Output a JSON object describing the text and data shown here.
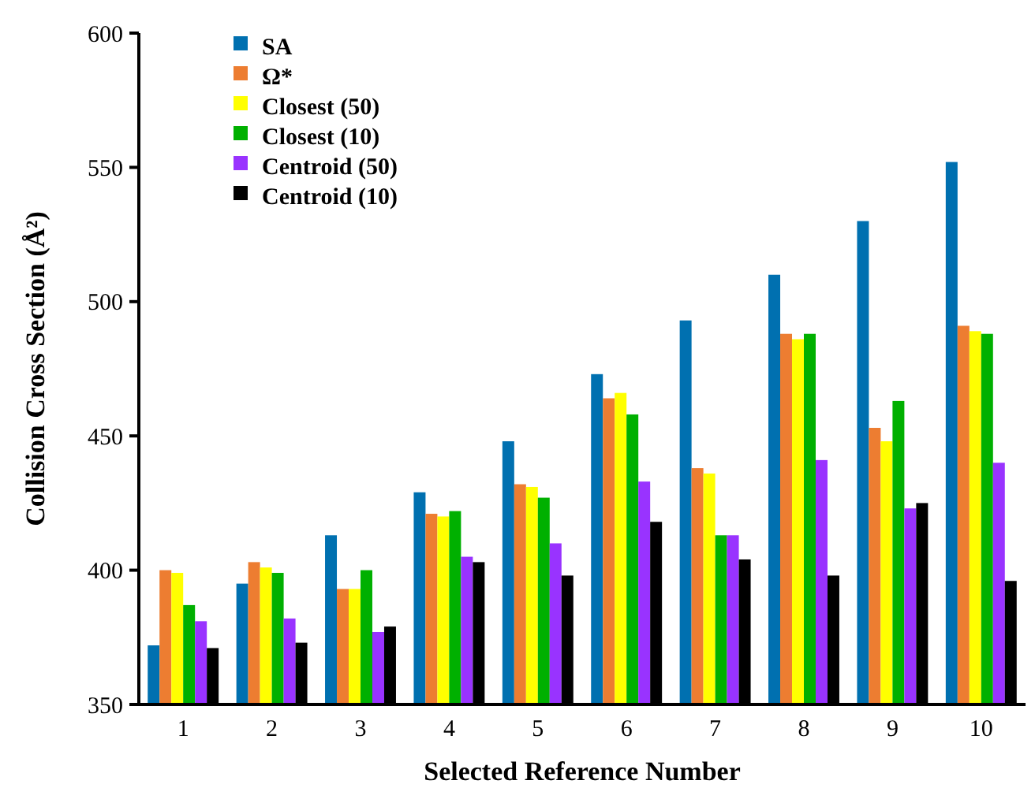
{
  "chart_data": {
    "type": "bar",
    "xlabel": "Selected Reference Number",
    "ylabel": "Collision Cross Section (Å²)",
    "categories": [
      "1",
      "2",
      "3",
      "4",
      "5",
      "6",
      "7",
      "8",
      "9",
      "10"
    ],
    "ylim": [
      350,
      600
    ],
    "yticks": [
      350,
      400,
      450,
      500,
      550,
      600
    ],
    "grid": false,
    "legend": "top left",
    "series": [
      {
        "name": "SA",
        "color": "#0070b0",
        "values": [
          372,
          395,
          413,
          429,
          448,
          473,
          493,
          510,
          530,
          552
        ]
      },
      {
        "name": "Ω*",
        "color": "#ed7d31",
        "values": [
          400,
          403,
          393,
          421,
          432,
          464,
          438,
          488,
          453,
          491
        ]
      },
      {
        "name": "Closest (50)",
        "color": "#ffff00",
        "values": [
          399,
          401,
          393,
          420,
          431,
          466,
          436,
          486,
          448,
          489
        ]
      },
      {
        "name": "Closest (10)",
        "color": "#00b000",
        "values": [
          387,
          399,
          400,
          422,
          427,
          458,
          413,
          488,
          463,
          488
        ]
      },
      {
        "name": "Centroid (50)",
        "color": "#9933ff",
        "values": [
          381,
          382,
          377,
          405,
          410,
          433,
          413,
          441,
          423,
          440
        ]
      },
      {
        "name": "Centroid (10)",
        "color": "#000000",
        "values": [
          371,
          373,
          379,
          403,
          398,
          418,
          404,
          398,
          425,
          396
        ]
      }
    ]
  }
}
